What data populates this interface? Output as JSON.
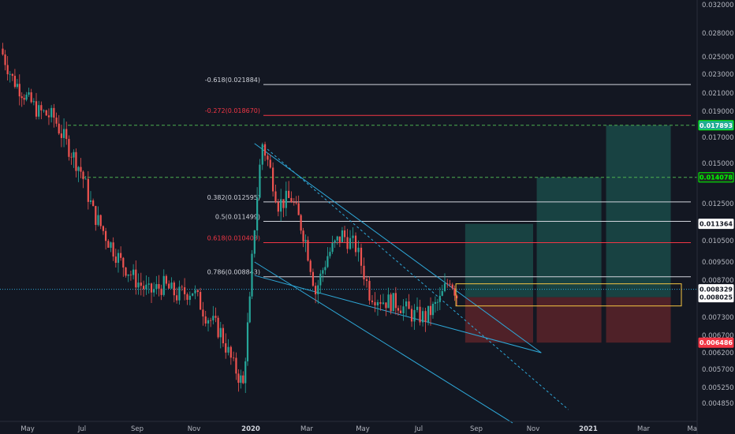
{
  "chart_data": {
    "type": "line",
    "title": "",
    "xlabel": "",
    "ylabel": "",
    "ylim": [
      0.0044,
      0.0325
    ],
    "x_ticks": [
      "May",
      "Jul",
      "Sep",
      "Nov",
      "2020",
      "Mar",
      "May",
      "Jul",
      "Sep",
      "Nov",
      "2021",
      "Mar",
      "Ma"
    ],
    "y_ticks": [
      "0.032000",
      "0.028000",
      "0.025000",
      "0.023000",
      "0.021000",
      "0.019000",
      "0.017000",
      "0.015000",
      "0.012500",
      "0.010500",
      "0.009500",
      "0.008700",
      "0.007300",
      "0.006700",
      "0.006200",
      "0.005700",
      "0.005250",
      "0.004850"
    ],
    "grid": false,
    "price_series": {
      "name": "",
      "x": [
        "2019-04-01",
        "2019-04-15",
        "2019-05-01",
        "2019-05-15",
        "2019-06-01",
        "2019-06-15",
        "2019-07-01",
        "2019-07-15",
        "2019-08-01",
        "2019-08-15",
        "2019-09-01",
        "2019-09-15",
        "2019-10-01",
        "2019-10-15",
        "2019-11-01",
        "2019-11-15",
        "2019-12-01",
        "2019-12-15",
        "2019-12-25",
        "2020-01-01",
        "2020-01-15",
        "2020-02-01",
        "2020-02-15",
        "2020-03-01",
        "2020-03-12",
        "2020-03-25",
        "2020-04-10",
        "2020-04-25",
        "2020-05-10",
        "2020-05-25",
        "2020-06-10",
        "2020-06-25",
        "2020-07-10",
        "2020-07-25",
        "2020-08-05",
        "2020-08-12"
      ],
      "values": [
        0.026,
        0.0225,
        0.0205,
        0.019,
        0.0185,
        0.0165,
        0.0145,
        0.012,
        0.0105,
        0.0095,
        0.0087,
        0.0082,
        0.0085,
        0.0081,
        0.0083,
        0.0074,
        0.0068,
        0.0058,
        0.0053,
        0.0078,
        0.0165,
        0.0125,
        0.0128,
        0.0105,
        0.0082,
        0.0098,
        0.0108,
        0.0102,
        0.0082,
        0.0079,
        0.0078,
        0.0074,
        0.0073,
        0.0079,
        0.0088,
        0.0081
      ]
    },
    "horizontal_levels": [
      {
        "label": "-0.618(0.021884)",
        "value": 0.021884,
        "color": "#d1d4dc"
      },
      {
        "label": "-0.272(0.018670)",
        "value": 0.01867,
        "color": "#f23645"
      },
      {
        "label": "0.382(0.012595)",
        "value": 0.012595,
        "color": "#d1d4dc"
      },
      {
        "label": "0.5(0.011499)",
        "value": 0.011499,
        "color": "#d1d4dc"
      },
      {
        "label": "0.618(0.010403)",
        "value": 0.010403,
        "color": "#f23645"
      },
      {
        "label": "0.786(0.008843)",
        "value": 0.008843,
        "color": "#d1d4dc"
      }
    ],
    "target_lines": [
      0.017893,
      0.014078
    ],
    "price_badges": [
      {
        "text": "0.017893",
        "value": 0.017893,
        "bg": "#22ab94",
        "fg": "#ffffff",
        "border": "#00ff00"
      },
      {
        "text": "0.014078",
        "value": 0.014078,
        "bg": "#1e2a22",
        "fg": "#00ff00",
        "border": "#00ff00"
      },
      {
        "text": "0.011364",
        "value": 0.011364,
        "bg": "#ffffff",
        "fg": "#131722",
        "border": "#ffffff"
      },
      {
        "text": "0.008329",
        "value": 0.008329,
        "bg": "#ffffff",
        "fg": "#131722",
        "border": "#ffffff"
      },
      {
        "text": "0.008025",
        "value": 0.008025,
        "bg": "#ffffff",
        "fg": "#131722",
        "border": "#ffffff"
      },
      {
        "text": "0.006486",
        "value": 0.006486,
        "bg": "#f23645",
        "fg": "#ffffff",
        "border": "#f23645"
      }
    ],
    "positions": [
      {
        "start": "2020-08-20",
        "end": "2020-11-01",
        "entry": 0.008025,
        "target": 0.011364,
        "stop": 0.006486
      },
      {
        "start": "2020-11-05",
        "end": "2021-01-15",
        "entry": 0.008025,
        "target": 0.014078,
        "stop": 0.006486
      },
      {
        "start": "2021-01-20",
        "end": "2021-04-01",
        "entry": 0.008025,
        "target": 0.017893,
        "stop": 0.006486
      }
    ],
    "colors": {
      "background": "#131722",
      "up": "#26a69a",
      "down": "#ef5350",
      "trendline": "#2ea8d8",
      "profit_zone": "#1a4a48",
      "loss_zone": "#5a2329",
      "target_dashed": "#4caf50",
      "entry_box": "#f5c542"
    }
  }
}
